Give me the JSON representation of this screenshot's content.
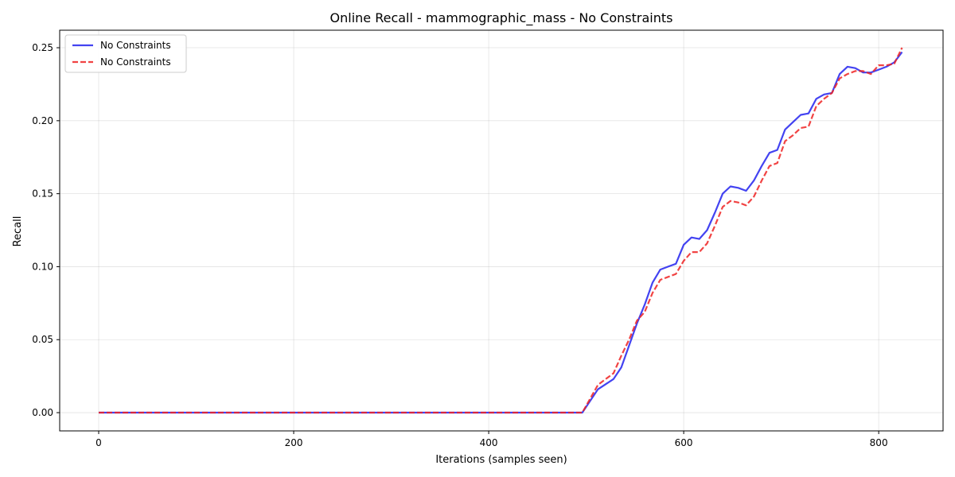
{
  "chart_data": {
    "type": "line",
    "title": "Online Recall - mammographic_mass - No Constraints",
    "xlabel": "Iterations (samples seen)",
    "ylabel": "Recall",
    "xlim": [
      -40,
      866
    ],
    "ylim": [
      -0.0125,
      0.262
    ],
    "xticks": [
      0,
      200,
      400,
      600,
      800
    ],
    "xtick_labels": [
      "0",
      "200",
      "400",
      "600",
      "800"
    ],
    "yticks": [
      0.0,
      0.05,
      0.1,
      0.15,
      0.2,
      0.25
    ],
    "ytick_labels": [
      "0.00",
      "0.05",
      "0.10",
      "0.15",
      "0.20",
      "0.25"
    ],
    "grid": true,
    "legend_position": "upper-left",
    "series": [
      {
        "name": "No Constraints",
        "color": "#2222ee",
        "style": "solid",
        "x": [
          0,
          496,
          512,
          528,
          536,
          544,
          552,
          560,
          568,
          576,
          584,
          592,
          600,
          608,
          616,
          624,
          632,
          640,
          648,
          656,
          664,
          672,
          680,
          688,
          696,
          704,
          712,
          720,
          728,
          736,
          744,
          752,
          760,
          768,
          776,
          784,
          792,
          800,
          808,
          816,
          824
        ],
        "y": [
          0.0,
          0.0,
          0.016,
          0.023,
          0.031,
          0.046,
          0.061,
          0.074,
          0.089,
          0.098,
          0.1,
          0.102,
          0.115,
          0.12,
          0.119,
          0.125,
          0.137,
          0.15,
          0.155,
          0.154,
          0.152,
          0.159,
          0.169,
          0.178,
          0.18,
          0.194,
          0.199,
          0.204,
          0.205,
          0.215,
          0.218,
          0.219,
          0.232,
          0.237,
          0.236,
          0.233,
          0.233,
          0.235,
          0.237,
          0.24,
          0.247
        ]
      },
      {
        "name": "No Constraints",
        "color": "#ee2222",
        "style": "dashed",
        "x": [
          0,
          496,
          512,
          520,
          528,
          536,
          544,
          552,
          560,
          568,
          576,
          584,
          592,
          600,
          608,
          616,
          624,
          632,
          640,
          648,
          656,
          664,
          672,
          680,
          688,
          696,
          704,
          712,
          720,
          728,
          736,
          744,
          752,
          760,
          768,
          776,
          784,
          792,
          800,
          808,
          816,
          824
        ],
        "y": [
          0.0,
          0.0,
          0.019,
          0.023,
          0.027,
          0.039,
          0.05,
          0.063,
          0.069,
          0.082,
          0.091,
          0.093,
          0.095,
          0.104,
          0.11,
          0.11,
          0.116,
          0.128,
          0.141,
          0.145,
          0.144,
          0.142,
          0.148,
          0.159,
          0.169,
          0.171,
          0.186,
          0.19,
          0.195,
          0.196,
          0.21,
          0.215,
          0.219,
          0.229,
          0.232,
          0.234,
          0.234,
          0.232,
          0.238,
          0.238,
          0.239,
          0.25
        ]
      }
    ]
  }
}
